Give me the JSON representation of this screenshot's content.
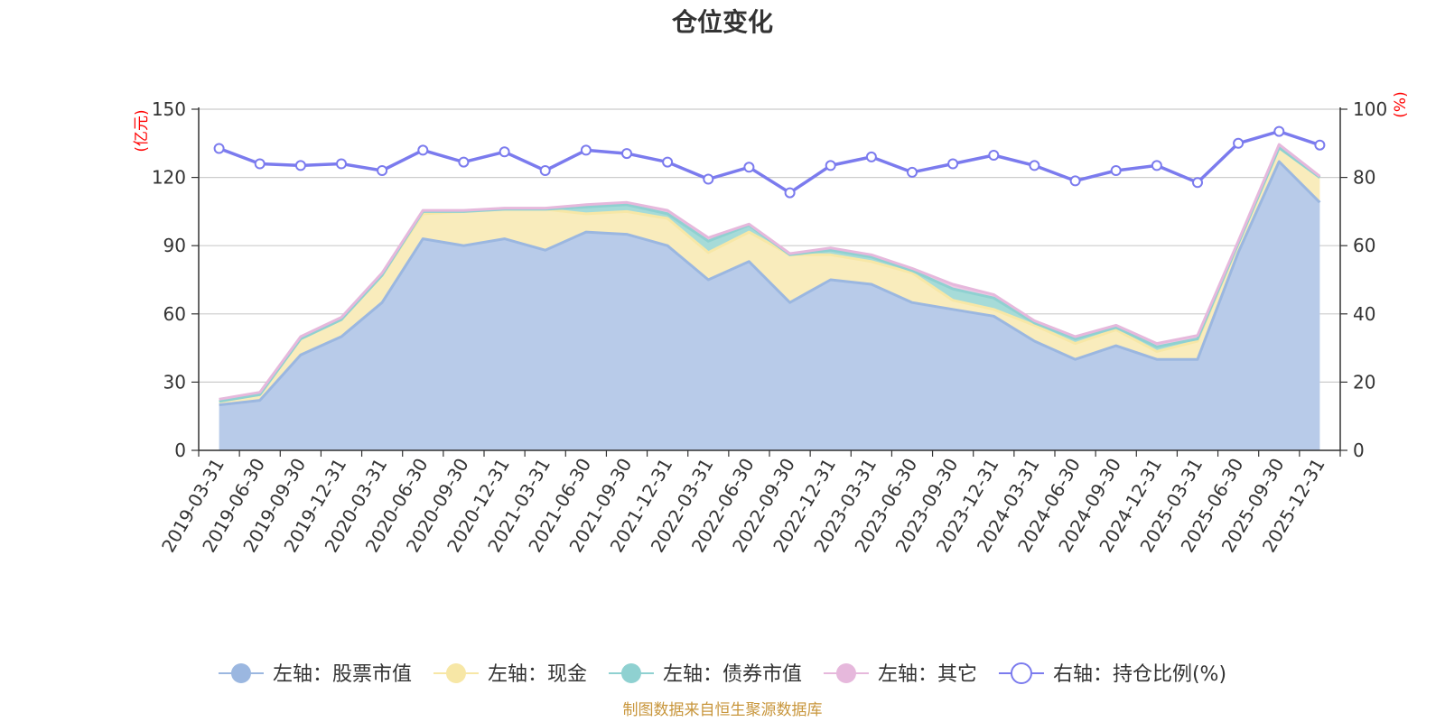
{
  "chart_data": {
    "type": "area",
    "title": "仓位变化",
    "source": "制图数据来自恒生聚源数据库",
    "left_unit": "(亿元)",
    "right_unit": "(%)",
    "left_ylim": [
      0,
      150
    ],
    "left_ticks": [
      "0",
      "30",
      "60",
      "90",
      "120",
      "150"
    ],
    "right_ylim": [
      0,
      100
    ],
    "right_ticks": [
      "0",
      "20",
      "40",
      "60",
      "80",
      "100"
    ],
    "categories": [
      "2019-03-31",
      "2019-06-30",
      "2019-09-30",
      "2019-12-31",
      "2020-03-31",
      "2020-06-30",
      "2020-09-30",
      "2020-12-31",
      "2021-03-31",
      "2021-06-30",
      "2021-09-30",
      "2021-12-31",
      "2022-03-31",
      "2022-06-30",
      "2022-09-30",
      "2022-12-31",
      "2023-03-31",
      "2023-06-30",
      "2023-09-30",
      "2023-12-31",
      "2024-03-31",
      "2024-06-30",
      "2024-09-30",
      "2024-12-31",
      "2025-03-31",
      "2025-06-30",
      "2025-09-30",
      "2025-12-31"
    ],
    "series": [
      {
        "name": "左轴：股票市值",
        "axis": "left",
        "color": "#9bb7e0",
        "fill": "#b8cbe9",
        "values": [
          20,
          22,
          42,
          50,
          65,
          93,
          90,
          93,
          88,
          96,
          95,
          90,
          75,
          83,
          65,
          75,
          73,
          65,
          62,
          59,
          48,
          40,
          46,
          40,
          40,
          87,
          127,
          109
        ]
      },
      {
        "name": "左轴：现金",
        "axis": "left",
        "color": "#f7e7a6",
        "fill": "#f9ecbc",
        "values": [
          1.5,
          2.5,
          7,
          7.5,
          12,
          11,
          15,
          13,
          18,
          8,
          10,
          12,
          12,
          13,
          21,
          11,
          10,
          13,
          4,
          3,
          7,
          7,
          7,
          3.5,
          8,
          4,
          6,
          11
        ]
      },
      {
        "name": "左轴：债券市值",
        "axis": "left",
        "color": "#8fd1d1",
        "fill": "#a6dbd8",
        "values": [
          0,
          0,
          0,
          0,
          0,
          1,
          0,
          0,
          0,
          3,
          3,
          2,
          5,
          3,
          0,
          2,
          2,
          1,
          5,
          5,
          1,
          2,
          1,
          2,
          1,
          0,
          0,
          0
        ]
      },
      {
        "name": "左轴：其它",
        "axis": "left",
        "color": "#e6b8dc",
        "fill": "#eec8e4",
        "values": [
          1,
          1,
          1,
          1,
          1,
          0.5,
          0.5,
          0.5,
          0.5,
          1,
          1,
          1.5,
          1.5,
          0.5,
          0.5,
          1,
          1,
          1,
          2,
          1.5,
          1,
          1,
          1,
          1.5,
          1.5,
          1,
          1.5,
          0.5
        ]
      },
      {
        "name": "右轴：持仓比例(%)",
        "axis": "right",
        "color": "#7b7bee",
        "values": [
          88.5,
          84,
          83.5,
          84,
          82,
          88,
          84.5,
          87.5,
          82,
          88,
          87,
          84.5,
          79.5,
          83,
          75.5,
          83.5,
          86,
          81.5,
          84,
          86.5,
          83.5,
          79,
          82,
          83.5,
          78.5,
          90,
          93.5,
          89.5
        ]
      }
    ]
  }
}
